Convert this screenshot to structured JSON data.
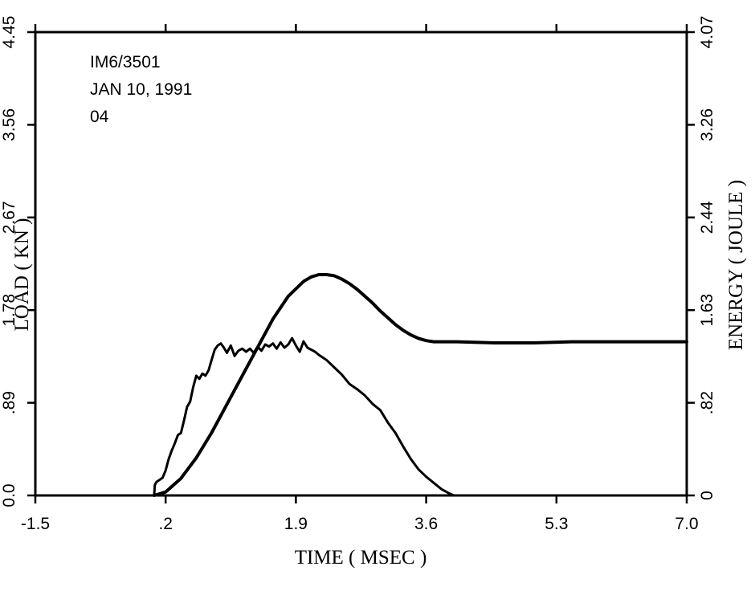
{
  "chart_data": {
    "type": "line",
    "title": "",
    "annotations": [
      "IM6/3501",
      "JAN 10, 1991",
      "04"
    ],
    "xlabel": "TIME ( MSEC )",
    "ylabel_left": "LOAD ( KN )",
    "ylabel_right": "ENERGY ( JOULE )",
    "xlim": [
      -1.5,
      7.0
    ],
    "ylim_left": [
      0.0,
      4.45
    ],
    "ylim_right": [
      0,
      4.07
    ],
    "x_ticks": [
      "-1.5",
      ".2",
      "1.9",
      "3.6",
      "5.3",
      "7.0"
    ],
    "y_left_ticks": [
      "0.0",
      ".89",
      "1.78",
      "2.67",
      "3.56",
      "4.45"
    ],
    "y_right_ticks": [
      "0",
      ".82",
      "1.63",
      "2.44",
      "3.26",
      "4.07"
    ],
    "grid": false,
    "series": [
      {
        "axis": "left",
        "x": [
          0.05,
          0.06,
          0.08,
          0.12,
          0.16,
          0.2,
          0.24,
          0.28,
          0.32,
          0.36,
          0.4,
          0.44,
          0.48,
          0.52,
          0.56,
          0.6,
          0.64,
          0.68,
          0.72,
          0.76,
          0.8,
          0.84,
          0.88,
          0.92,
          0.96,
          1.0,
          1.05,
          1.1,
          1.15,
          1.2,
          1.25,
          1.3,
          1.35,
          1.4,
          1.45,
          1.5,
          1.55,
          1.6,
          1.65,
          1.7,
          1.75,
          1.8,
          1.85,
          1.9,
          1.95,
          2.0,
          2.05,
          2.1,
          2.15,
          2.2,
          2.3,
          2.4,
          2.5,
          2.6,
          2.7,
          2.8,
          2.9,
          3.0,
          3.1,
          3.2,
          3.3,
          3.4,
          3.5,
          3.6,
          3.7,
          3.8,
          3.9,
          3.96
        ],
        "values": [
          0.0,
          0.1,
          0.13,
          0.15,
          0.17,
          0.24,
          0.35,
          0.43,
          0.5,
          0.58,
          0.6,
          0.72,
          0.85,
          0.9,
          1.04,
          1.15,
          1.12,
          1.17,
          1.15,
          1.2,
          1.3,
          1.4,
          1.44,
          1.46,
          1.42,
          1.37,
          1.44,
          1.34,
          1.39,
          1.41,
          1.38,
          1.41,
          1.37,
          1.43,
          1.39,
          1.45,
          1.43,
          1.46,
          1.41,
          1.47,
          1.42,
          1.45,
          1.51,
          1.44,
          1.38,
          1.48,
          1.42,
          1.4,
          1.38,
          1.35,
          1.3,
          1.23,
          1.16,
          1.07,
          1.02,
          0.96,
          0.88,
          0.82,
          0.7,
          0.6,
          0.47,
          0.35,
          0.25,
          0.18,
          0.12,
          0.06,
          0.02,
          0.0
        ]
      },
      {
        "axis": "right",
        "x": [
          0.05,
          0.2,
          0.4,
          0.6,
          0.8,
          1.0,
          1.2,
          1.4,
          1.6,
          1.8,
          2.0,
          2.1,
          2.2,
          2.3,
          2.4,
          2.5,
          2.6,
          2.7,
          2.8,
          2.9,
          3.0,
          3.1,
          3.2,
          3.3,
          3.4,
          3.5,
          3.6,
          3.7,
          3.8,
          4.0,
          4.5,
          5.0,
          5.5,
          6.0,
          6.5,
          7.0
        ],
        "values": [
          0.0,
          0.03,
          0.15,
          0.33,
          0.55,
          0.8,
          1.05,
          1.3,
          1.55,
          1.75,
          1.88,
          1.92,
          1.94,
          1.94,
          1.93,
          1.9,
          1.86,
          1.81,
          1.75,
          1.69,
          1.62,
          1.56,
          1.5,
          1.45,
          1.41,
          1.38,
          1.36,
          1.35,
          1.35,
          1.35,
          1.34,
          1.34,
          1.35,
          1.35,
          1.35,
          1.35
        ]
      }
    ]
  }
}
